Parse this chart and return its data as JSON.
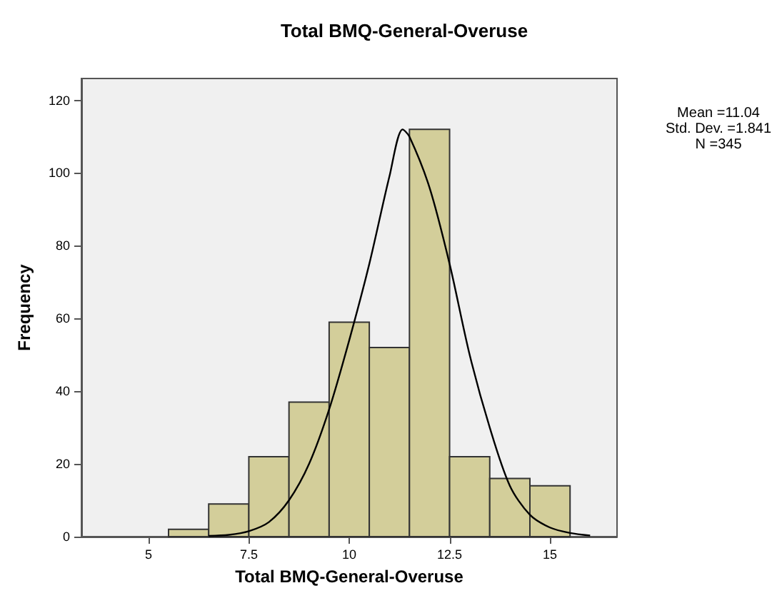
{
  "chart_data": {
    "type": "histogram",
    "title": "Total BMQ-General-Overuse",
    "xlabel": "Total BMQ-General-Overuse",
    "ylabel": "Frequency",
    "bins": [
      5.5,
      6.5,
      7.5,
      8.5,
      9.5,
      10.5,
      11.5,
      12.5,
      13.5,
      14.5,
      15.5
    ],
    "values": [
      2,
      9,
      22,
      37,
      59,
      52,
      112,
      22,
      16,
      14
    ],
    "color": "#d3ce9a",
    "series": [
      {
        "type": "line",
        "color": "#000000",
        "x": [
          6.5,
          7,
          7.5,
          8,
          8.5,
          9,
          9.5,
          10,
          10.5,
          11,
          11.33,
          11.5,
          12,
          12.5,
          13,
          13.5,
          14,
          14.5,
          15,
          15.5,
          16
        ],
        "values": [
          0.2,
          0.5,
          1.5,
          4,
          10,
          20,
          35,
          54,
          75,
          99,
          112,
          110,
          96,
          75,
          50,
          30,
          14,
          6,
          2.5,
          1,
          0.3
        ]
      }
    ],
    "marker": "none",
    "xlim": [
      3.33,
      16.67
    ],
    "xticks": [
      5,
      7.5,
      10,
      12.5,
      15
    ],
    "ylim": [
      0,
      126
    ],
    "yticks": [
      0,
      20,
      40,
      60,
      80,
      100,
      120
    ],
    "annotations": [
      "Mean =11.04\nStd. Dev. =1.841\nN =345"
    ]
  }
}
